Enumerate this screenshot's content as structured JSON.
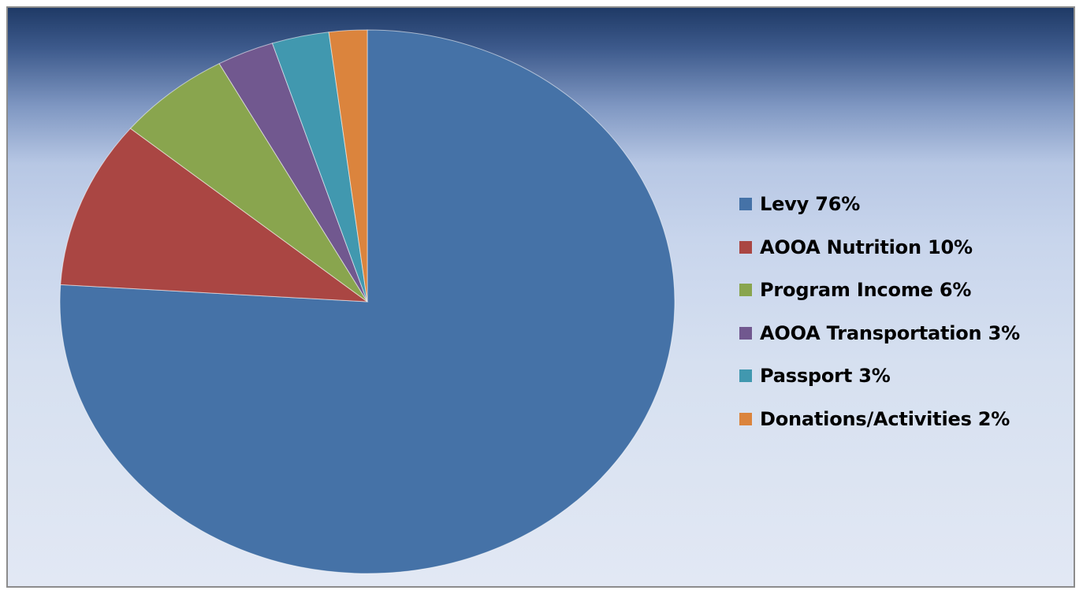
{
  "chart_data": {
    "type": "pie",
    "title": "",
    "slices": [
      {
        "label": "Levy 76%",
        "value": 76,
        "color": "#4572A7"
      },
      {
        "label": "AOOA Nutrition 10%",
        "value": 10,
        "color": "#AA4643"
      },
      {
        "label": "Program Income 6%",
        "value": 6,
        "color": "#89A54E"
      },
      {
        "label": "AOOA Transportation 3%",
        "value": 3,
        "color": "#71588F"
      },
      {
        "label": "Passport 3%",
        "value": 3,
        "color": "#4198AF"
      },
      {
        "label": "Donations/Activities 2%",
        "value": 2,
        "color": "#DB843D"
      }
    ],
    "start_angle_deg": 0,
    "direction": "clockwise",
    "legend_position": "right"
  },
  "colors": {
    "border": "#8c8c8c",
    "background_top": "#1f3a66",
    "background_bottom": "#e2e8f4"
  }
}
